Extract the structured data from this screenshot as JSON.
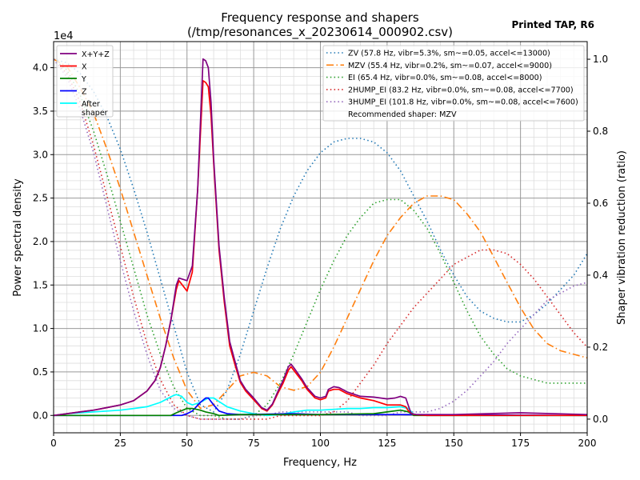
{
  "chart_data": {
    "type": "line",
    "title": "Frequency response and shapers",
    "subtitle": "(/tmp/resonances_x_20230614_000902.csv)",
    "corner_label": "Printed TAP, R6",
    "xlabel": "Frequency, Hz",
    "ylabel": "Power spectral density",
    "y2label": "Shaper vibration reduction (ratio)",
    "y_offset_label": "1e4",
    "xlim": [
      0,
      200
    ],
    "ylim": [
      -0.2,
      4.3
    ],
    "y2lim": [
      -0.038,
      1.049
    ],
    "x_ticks": [
      "0",
      "25",
      "50",
      "75",
      "100",
      "125",
      "150",
      "175",
      "200"
    ],
    "y_ticks": [
      "0.0",
      "0.5",
      "1.0",
      "1.5",
      "2.0",
      "2.5",
      "3.0",
      "3.5",
      "4.0"
    ],
    "y2_ticks": [
      "0.0",
      "0.2",
      "0.4",
      "0.6",
      "0.8",
      "1.0"
    ],
    "grid": true,
    "psd_legend_position": "upper-left",
    "shaper_legend_position": "upper-right",
    "psd_series": [
      {
        "name": "X+Y+Z",
        "color": "#800080",
        "x": [
          0,
          5,
          10,
          15,
          20,
          25,
          28,
          30,
          35,
          38,
          40,
          42,
          44,
          46,
          47,
          50,
          52,
          54,
          56,
          57,
          58,
          59,
          60,
          62,
          64,
          66,
          68,
          70,
          72,
          75,
          78,
          80,
          82,
          84,
          86,
          88,
          89,
          90,
          93,
          95,
          98,
          100,
          102,
          103,
          105,
          107,
          110,
          115,
          120,
          125,
          128,
          130,
          132,
          134,
          136,
          150,
          175,
          200
        ],
        "y": [
          0,
          0.02,
          0.04,
          0.06,
          0.09,
          0.12,
          0.15,
          0.17,
          0.28,
          0.4,
          0.55,
          0.8,
          1.1,
          1.5,
          1.58,
          1.55,
          1.72,
          2.6,
          4.1,
          4.08,
          4.0,
          3.6,
          2.95,
          1.95,
          1.35,
          0.85,
          0.62,
          0.4,
          0.3,
          0.2,
          0.09,
          0.06,
          0.13,
          0.27,
          0.4,
          0.56,
          0.59,
          0.55,
          0.42,
          0.32,
          0.22,
          0.2,
          0.22,
          0.3,
          0.33,
          0.32,
          0.27,
          0.22,
          0.21,
          0.19,
          0.2,
          0.22,
          0.2,
          0.02,
          0.01,
          0.01,
          0.03,
          0.01
        ]
      },
      {
        "name": "X",
        "color": "#ff0000",
        "x": [
          0,
          5,
          10,
          15,
          20,
          25,
          28,
          30,
          35,
          38,
          40,
          42,
          44,
          46,
          47,
          50,
          52,
          54,
          56,
          57,
          58,
          59,
          60,
          62,
          64,
          66,
          68,
          70,
          72,
          75,
          78,
          80,
          82,
          84,
          86,
          88,
          89,
          90,
          93,
          95,
          98,
          100,
          102,
          103,
          105,
          107,
          110,
          115,
          120,
          125,
          128,
          130,
          132,
          133,
          135,
          140,
          200
        ],
        "y": [
          0,
          0.02,
          0.04,
          0.06,
          0.09,
          0.12,
          0.15,
          0.17,
          0.28,
          0.4,
          0.55,
          0.8,
          1.1,
          1.45,
          1.55,
          1.43,
          1.65,
          2.6,
          3.85,
          3.83,
          3.78,
          3.45,
          2.9,
          1.9,
          1.3,
          0.8,
          0.58,
          0.38,
          0.28,
          0.18,
          0.08,
          0.05,
          0.12,
          0.25,
          0.37,
          0.52,
          0.56,
          0.52,
          0.4,
          0.3,
          0.2,
          0.18,
          0.2,
          0.28,
          0.3,
          0.3,
          0.25,
          0.2,
          0.17,
          0.12,
          0.12,
          0.12,
          0.1,
          0.05,
          0.01,
          0,
          0
        ]
      },
      {
        "name": "Y",
        "color": "#008000",
        "x": [
          0,
          44,
          46,
          50,
          52,
          55,
          57,
          60,
          62,
          70,
          100,
          120,
          125,
          130,
          133,
          135,
          200
        ],
        "y": [
          0,
          0,
          0.03,
          0.08,
          0.08,
          0.06,
          0.04,
          0.02,
          0,
          0.01,
          0.01,
          0.02,
          0.04,
          0.06,
          0.04,
          0,
          0
        ]
      },
      {
        "name": "Z",
        "color": "#0000ff",
        "x": [
          0,
          48,
          50,
          52,
          55,
          57,
          58,
          60,
          62,
          65,
          70,
          90,
          100,
          130,
          200
        ],
        "y": [
          0,
          0,
          0.02,
          0.05,
          0.15,
          0.2,
          0.2,
          0.12,
          0.05,
          0.02,
          0.01,
          0.02,
          0.01,
          0.01,
          0
        ]
      },
      {
        "name": "After\nshaper",
        "color": "#00ffff",
        "x": [
          0,
          5,
          10,
          20,
          25,
          30,
          35,
          40,
          45,
          46,
          48,
          50,
          52,
          55,
          58,
          60,
          62,
          65,
          70,
          75,
          80,
          85,
          90,
          95,
          100,
          105,
          110,
          115,
          120,
          125,
          130,
          133,
          135,
          140,
          200
        ],
        "y": [
          0,
          0.02,
          0.03,
          0.05,
          0.06,
          0.08,
          0.1,
          0.15,
          0.23,
          0.24,
          0.22,
          0.15,
          0.12,
          0.15,
          0.2,
          0.2,
          0.16,
          0.1,
          0.05,
          0.02,
          0,
          0.01,
          0.04,
          0.06,
          0.06,
          0.07,
          0.08,
          0.08,
          0.09,
          0.09,
          0.1,
          0.08,
          0.01,
          0,
          0
        ]
      }
    ],
    "shaper_x": [
      0,
      5,
      10,
      15,
      20,
      25,
      30,
      35,
      40,
      45,
      50,
      55,
      60,
      65,
      70,
      75,
      80,
      85,
      90,
      95,
      100,
      105,
      110,
      115,
      120,
      125,
      130,
      135,
      140,
      145,
      150,
      155,
      160,
      165,
      170,
      175,
      180,
      185,
      190,
      195,
      200
    ],
    "shaper_series": [
      {
        "name": "ZV (57.8 Hz, vibr=5.3%, sm~=0.05, accel<=13000)",
        "color": "#1f77b4",
        "dash": "dotted",
        "y": [
          1.0,
          0.99,
          0.96,
          0.91,
          0.84,
          0.75,
          0.64,
          0.52,
          0.39,
          0.26,
          0.13,
          0.04,
          0.02,
          0.08,
          0.18,
          0.3,
          0.42,
          0.53,
          0.62,
          0.69,
          0.74,
          0.77,
          0.78,
          0.78,
          0.77,
          0.74,
          0.69,
          0.62,
          0.55,
          0.47,
          0.4,
          0.34,
          0.3,
          0.28,
          0.27,
          0.27,
          0.29,
          0.32,
          0.36,
          0.4,
          0.46
        ]
      },
      {
        "name": "MZV (55.4 Hz, vibr=0.2%, sm~=0.07, accel<=9000)",
        "color": "#ff7f0e",
        "dash": "dashdot",
        "y": [
          1.0,
          0.98,
          0.92,
          0.85,
          0.75,
          0.64,
          0.52,
          0.4,
          0.28,
          0.17,
          0.08,
          0.03,
          0.04,
          0.08,
          0.12,
          0.13,
          0.12,
          0.09,
          0.08,
          0.09,
          0.13,
          0.2,
          0.28,
          0.36,
          0.44,
          0.51,
          0.56,
          0.6,
          0.62,
          0.62,
          0.61,
          0.57,
          0.52,
          0.45,
          0.38,
          0.31,
          0.25,
          0.21,
          0.19,
          0.18,
          0.17
        ]
      },
      {
        "name": "EI (65.4 Hz, vibr=0.0%, sm~=0.08, accel<=8000)",
        "color": "#2ca02c",
        "dash": "dotted",
        "y": [
          1.0,
          0.97,
          0.9,
          0.8,
          0.68,
          0.55,
          0.42,
          0.29,
          0.18,
          0.09,
          0.03,
          0.01,
          0.01,
          0.0,
          0.0,
          0.01,
          0.04,
          0.1,
          0.18,
          0.27,
          0.36,
          0.44,
          0.51,
          0.56,
          0.6,
          0.61,
          0.61,
          0.58,
          0.53,
          0.46,
          0.38,
          0.3,
          0.23,
          0.18,
          0.14,
          0.12,
          0.11,
          0.1,
          0.1,
          0.1,
          0.1
        ]
      },
      {
        "name": "2HUMP_EI (83.2 Hz, vibr=0.0%, sm~=0.08, accel<=7700)",
        "color": "#d62728",
        "dash": "dotted",
        "y": [
          1.0,
          0.96,
          0.88,
          0.76,
          0.62,
          0.48,
          0.34,
          0.21,
          0.11,
          0.04,
          0.01,
          0.0,
          0.0,
          0.0,
          0.0,
          0.0,
          0.0,
          0.01,
          0.01,
          0.01,
          0.01,
          0.02,
          0.05,
          0.1,
          0.15,
          0.21,
          0.26,
          0.31,
          0.35,
          0.39,
          0.43,
          0.45,
          0.47,
          0.47,
          0.46,
          0.43,
          0.39,
          0.34,
          0.29,
          0.24,
          0.2
        ]
      },
      {
        "name": "3HUMP_EI (101.8 Hz, vibr=0.0%, sm~=0.08, accel<=7600)",
        "color": "#9467bd",
        "dash": "dotted",
        "y": [
          1.0,
          0.95,
          0.86,
          0.74,
          0.59,
          0.44,
          0.3,
          0.18,
          0.08,
          0.03,
          0.01,
          0.0,
          0.0,
          0.0,
          0.0,
          0.01,
          0.01,
          0.02,
          0.02,
          0.02,
          0.02,
          0.02,
          0.02,
          0.01,
          0.01,
          0.01,
          0.02,
          0.02,
          0.02,
          0.03,
          0.05,
          0.08,
          0.12,
          0.16,
          0.21,
          0.25,
          0.29,
          0.33,
          0.35,
          0.37,
          0.38
        ]
      }
    ],
    "recommended": "Recommended shaper: MZV"
  }
}
